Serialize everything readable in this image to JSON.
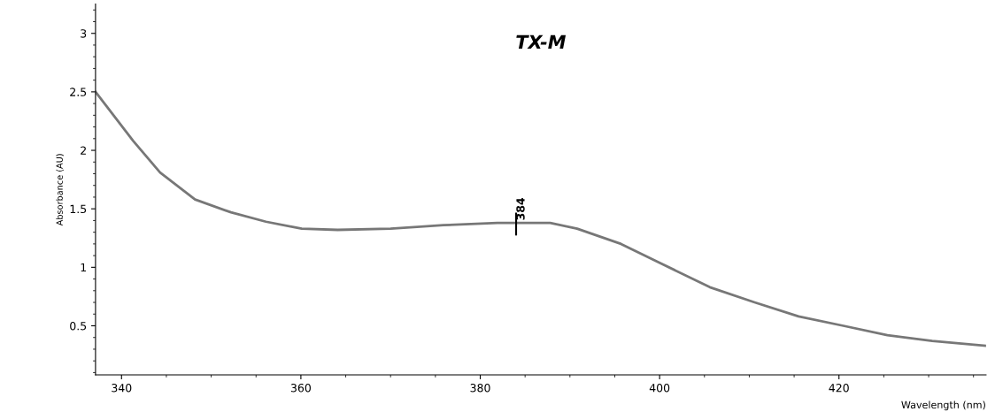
{
  "chart_data": {
    "type": "line",
    "title": "TX-M",
    "xlabel": "Wavelength (nm)",
    "ylabel": "Absorbance (AU)",
    "x": [
      337.1,
      341.3,
      344.3,
      348.2,
      352.2,
      356.1,
      360.1,
      364.1,
      370.0,
      375.9,
      381.9,
      387.8,
      390.8,
      395.7,
      399.7,
      405.6,
      410.6,
      415.5,
      420.5,
      425.4,
      430.4,
      436.3
    ],
    "series": [
      {
        "color": "#777777",
        "values": [
          2.5,
          2.08,
          1.81,
          1.58,
          1.47,
          1.39,
          1.33,
          1.32,
          1.33,
          1.36,
          1.38,
          1.38,
          1.33,
          1.2,
          1.05,
          0.83,
          0.7,
          0.58,
          0.5,
          0.42,
          0.37,
          0.33
        ]
      }
    ],
    "xlim": [
      337.1,
      436.4
    ],
    "ylim": [
      0.08,
      3.25
    ],
    "xticks": [
      340,
      360,
      380,
      400,
      420
    ],
    "yticks": [
      0.5,
      1,
      1.5,
      2,
      2.5,
      3
    ],
    "annotations": [
      {
        "text": "384",
        "x": 384,
        "y": 1.38
      }
    ],
    "grid": false,
    "legend": false,
    "marker": "none",
    "line_style": "solid"
  }
}
